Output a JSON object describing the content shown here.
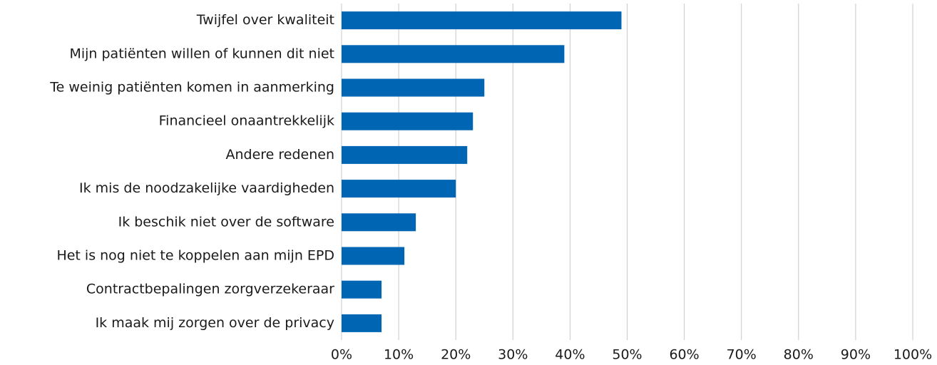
{
  "chart_data": {
    "type": "barh",
    "categories": [
      "Twijfel over kwaliteit",
      "Mijn patiënten willen of kunnen dit niet",
      "Te weinig patiënten komen in aanmerking",
      "Financieel onaantrekkelijk",
      "Andere redenen",
      "Ik mis de noodzakelijke vaardigheden",
      "Ik beschik niet over de software",
      "Het is nog niet te koppelen aan mijn EPD",
      "Contractbepalingen zorgverzekeraar",
      "Ik maak mij zorgen over de privacy"
    ],
    "values": [
      49,
      39,
      25,
      23,
      22,
      20,
      13,
      11,
      7,
      7
    ],
    "color": "#0066b3",
    "xlim": [
      0,
      100
    ],
    "xticks": [
      {
        "value": 0,
        "label": "0%"
      },
      {
        "value": 10,
        "label": "10%"
      },
      {
        "value": 20,
        "label": "20%"
      },
      {
        "value": 30,
        "label": "30%"
      },
      {
        "value": 40,
        "label": "40%"
      },
      {
        "value": 50,
        "label": "50%"
      },
      {
        "value": 60,
        "label": "60%"
      },
      {
        "value": 70,
        "label": "70%"
      },
      {
        "value": 80,
        "label": "80%"
      },
      {
        "value": 90,
        "label": "90%"
      },
      {
        "value": 100,
        "label": "100%"
      }
    ],
    "grid": true
  }
}
